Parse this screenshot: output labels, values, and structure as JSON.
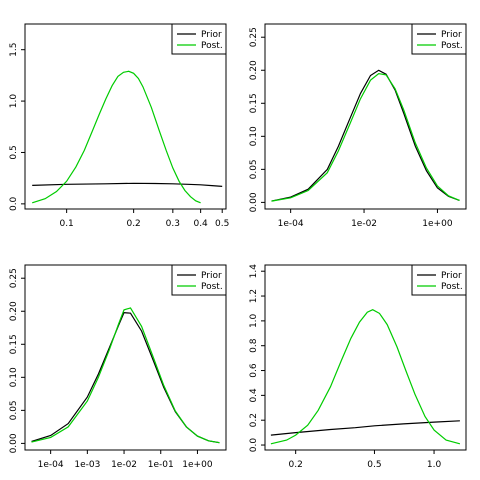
{
  "colors": {
    "prior": "#000000",
    "posterior": "#00cc00",
    "frame": "#000000"
  },
  "chart_data": [
    {
      "type": "line",
      "x_scale": "log",
      "xlim": [
        0.065,
        0.52
      ],
      "ylim": [
        -0.05,
        1.75
      ],
      "x_ticks": [
        0.1,
        0.2,
        0.3,
        0.4,
        0.5
      ],
      "x_tick_labels": [
        "0.1",
        "0.2",
        "0.3",
        "0.4",
        "0.5"
      ],
      "y_ticks": [
        0,
        0.5,
        1,
        1.5
      ],
      "y_tick_labels": [
        "0.0",
        "0.5",
        "1.0",
        "1.5"
      ],
      "legend": {
        "position": "top-right",
        "entries": [
          "Prior",
          "Post."
        ]
      },
      "series": [
        {
          "name": "Prior",
          "color": "#000000",
          "x": [
            0.07,
            0.1,
            0.15,
            0.2,
            0.25,
            0.3,
            0.35,
            0.4,
            0.45,
            0.5
          ],
          "y": [
            0.18,
            0.19,
            0.195,
            0.2,
            0.198,
            0.195,
            0.19,
            0.185,
            0.178,
            0.17
          ]
        },
        {
          "name": "Post.",
          "color": "#00cc00",
          "x": [
            0.07,
            0.08,
            0.09,
            0.1,
            0.11,
            0.12,
            0.13,
            0.14,
            0.15,
            0.16,
            0.17,
            0.18,
            0.19,
            0.2,
            0.21,
            0.22,
            0.24,
            0.26,
            0.28,
            0.3,
            0.32,
            0.34,
            0.36,
            0.38,
            0.4
          ],
          "y": [
            0.01,
            0.05,
            0.12,
            0.22,
            0.36,
            0.52,
            0.7,
            0.87,
            1.02,
            1.15,
            1.24,
            1.28,
            1.29,
            1.27,
            1.22,
            1.14,
            0.94,
            0.72,
            0.52,
            0.35,
            0.22,
            0.13,
            0.07,
            0.03,
            0.01
          ]
        }
      ]
    },
    {
      "type": "line",
      "x_scale": "log",
      "xlim": [
        2e-05,
        6
      ],
      "ylim": [
        -0.01,
        0.27
      ],
      "x_ticks": [
        0.0001,
        0.01,
        1
      ],
      "x_tick_labels": [
        "1e-04",
        "1e-02",
        "1e+00"
      ],
      "y_ticks": [
        0,
        0.05,
        0.1,
        0.15,
        0.2,
        0.25
      ],
      "y_tick_labels": [
        "0.00",
        "0.05",
        "0.10",
        "0.15",
        "0.20",
        "0.25"
      ],
      "legend": {
        "position": "top-right",
        "entries": [
          "Prior",
          "Post."
        ]
      },
      "series": [
        {
          "name": "Prior",
          "color": "#000000",
          "x": [
            3e-05,
            0.0001,
            0.0003,
            0.001,
            0.002,
            0.004,
            0.008,
            0.015,
            0.025,
            0.04,
            0.07,
            0.12,
            0.25,
            0.5,
            1,
            2,
            4
          ],
          "y": [
            0.002,
            0.008,
            0.02,
            0.05,
            0.085,
            0.125,
            0.165,
            0.192,
            0.2,
            0.194,
            0.17,
            0.135,
            0.085,
            0.048,
            0.022,
            0.009,
            0.003
          ]
        },
        {
          "name": "Post.",
          "color": "#00cc00",
          "x": [
            3e-05,
            0.0001,
            0.0003,
            0.001,
            0.002,
            0.004,
            0.008,
            0.015,
            0.025,
            0.04,
            0.07,
            0.12,
            0.25,
            0.5,
            1,
            2,
            4
          ],
          "y": [
            0.002,
            0.007,
            0.018,
            0.045,
            0.078,
            0.117,
            0.157,
            0.185,
            0.195,
            0.193,
            0.172,
            0.14,
            0.09,
            0.052,
            0.025,
            0.01,
            0.003
          ]
        }
      ]
    },
    {
      "type": "line",
      "x_scale": "log",
      "xlim": [
        2e-05,
        6
      ],
      "ylim": [
        -0.01,
        0.27
      ],
      "x_ticks": [
        0.0001,
        0.001,
        0.01,
        0.1,
        1
      ],
      "x_tick_labels": [
        "1e-04",
        "1e-03",
        "1e-02",
        "1e-01",
        "1e+00"
      ],
      "y_ticks": [
        0,
        0.05,
        0.1,
        0.15,
        0.2,
        0.25
      ],
      "y_tick_labels": [
        "0.00",
        "0.05",
        "0.10",
        "0.15",
        "0.20",
        "0.25"
      ],
      "legend": {
        "position": "top-right",
        "entries": [
          "Prior",
          "Post."
        ]
      },
      "series": [
        {
          "name": "Prior",
          "color": "#000000",
          "x": [
            3e-05,
            0.0001,
            0.0003,
            0.001,
            0.002,
            0.004,
            0.007,
            0.01,
            0.015,
            0.03,
            0.06,
            0.12,
            0.25,
            0.5,
            1,
            2,
            4
          ],
          "y": [
            0.003,
            0.012,
            0.03,
            0.07,
            0.105,
            0.145,
            0.178,
            0.198,
            0.197,
            0.17,
            0.128,
            0.085,
            0.048,
            0.025,
            0.011,
            0.004,
            0.001
          ]
        },
        {
          "name": "Post.",
          "color": "#00cc00",
          "x": [
            3e-05,
            0.0001,
            0.0003,
            0.001,
            0.002,
            0.004,
            0.007,
            0.01,
            0.015,
            0.03,
            0.06,
            0.12,
            0.25,
            0.5,
            1,
            2,
            4
          ],
          "y": [
            0.002,
            0.009,
            0.025,
            0.064,
            0.1,
            0.142,
            0.18,
            0.202,
            0.205,
            0.177,
            0.133,
            0.088,
            0.049,
            0.025,
            0.011,
            0.004,
            0.001
          ]
        }
      ]
    },
    {
      "type": "line",
      "x_scale": "log",
      "xlim": [
        0.14,
        1.45
      ],
      "ylim": [
        -0.04,
        1.45
      ],
      "x_ticks": [
        0.2,
        0.5,
        1
      ],
      "x_tick_labels": [
        "0.2",
        "0.5",
        "1.0"
      ],
      "y_ticks": [
        0,
        0.2,
        0.4,
        0.6,
        0.8,
        1,
        1.2,
        1.4
      ],
      "y_tick_labels": [
        "0.0",
        "0.2",
        "0.4",
        "0.6",
        "0.8",
        "1.0",
        "1.2",
        "1.4"
      ],
      "legend": {
        "position": "top-right",
        "entries": [
          "Prior",
          "Post."
        ]
      },
      "series": [
        {
          "name": "Prior",
          "color": "#000000",
          "x": [
            0.15,
            0.2,
            0.3,
            0.4,
            0.5,
            0.7,
            1,
            1.35
          ],
          "y": [
            0.08,
            0.1,
            0.125,
            0.14,
            0.155,
            0.17,
            0.185,
            0.195
          ]
        },
        {
          "name": "Post.",
          "color": "#00cc00",
          "x": [
            0.15,
            0.18,
            0.2,
            0.23,
            0.26,
            0.3,
            0.34,
            0.38,
            0.42,
            0.46,
            0.49,
            0.53,
            0.58,
            0.65,
            0.72,
            0.8,
            0.9,
            1,
            1.15,
            1.35
          ],
          "y": [
            0.01,
            0.04,
            0.08,
            0.16,
            0.28,
            0.47,
            0.68,
            0.86,
            0.99,
            1.07,
            1.09,
            1.06,
            0.97,
            0.79,
            0.6,
            0.41,
            0.23,
            0.12,
            0.04,
            0.01
          ]
        }
      ]
    }
  ]
}
